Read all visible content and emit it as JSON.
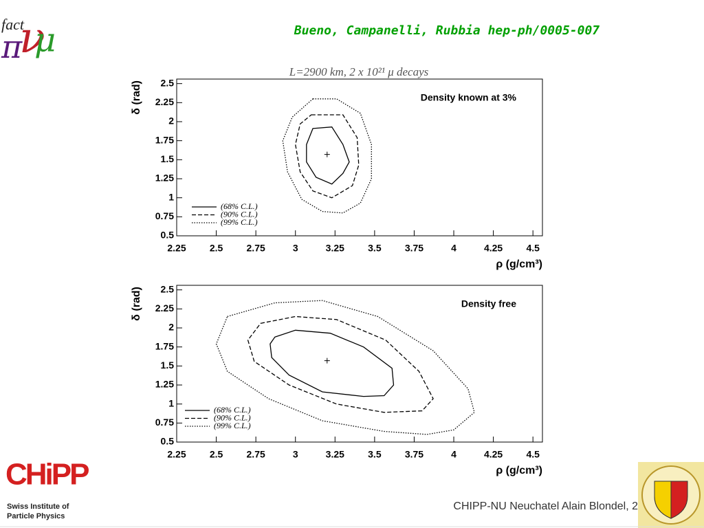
{
  "header": {
    "citation": "Bueno, Campanelli, Rubbia hep-ph/0005-007"
  },
  "logo_nufact": {
    "text": "fact",
    "nu": "ν",
    "pi": "π",
    "mu": "μ"
  },
  "logo_chipp": {
    "mark": "CHiPP",
    "line1": "Swiss Institute of",
    "line2": "Particle Physics"
  },
  "footer": {
    "text": "CHIPP-NU Neuchatel   Alain Blondel, 2"
  },
  "chart_data": [
    {
      "type": "contour",
      "title": "L=2900 km, 2 x 10²¹ μ decays",
      "annotation": "Density known at 3%",
      "x_label": "ρ (g/cm³)",
      "y_label": "δ (rad)",
      "xlim": [
        2.25,
        4.56
      ],
      "ylim": [
        0.5,
        2.56
      ],
      "xticks": [
        2.25,
        2.5,
        2.75,
        3,
        3.25,
        3.5,
        3.75,
        4,
        4.25,
        4.5
      ],
      "yticks": [
        0.5,
        0.75,
        1,
        1.25,
        1.5,
        1.75,
        2,
        2.25,
        2.5
      ],
      "legend": "lower left",
      "best_fit": {
        "x": 3.2,
        "y": 1.57
      },
      "series": [
        {
          "name": "(68% C.L.)",
          "color": "#000000",
          "dash": "solid",
          "x": [
            3.11,
            3.23,
            3.3,
            3.34,
            3.3,
            3.23,
            3.13,
            3.07,
            3.07
          ],
          "y": [
            1.91,
            1.93,
            1.7,
            1.47,
            1.32,
            1.18,
            1.27,
            1.47,
            1.7
          ]
        },
        {
          "name": "(90% C.L.)",
          "color": "#000000",
          "dash": "dashed",
          "x": [
            3.1,
            3.3,
            3.39,
            3.4,
            3.36,
            3.23,
            3.11,
            3.03,
            3.0,
            3.03
          ],
          "y": [
            2.09,
            2.09,
            1.79,
            1.43,
            1.16,
            1.0,
            1.09,
            1.34,
            1.7,
            1.97
          ]
        },
        {
          "name": "(99% C.L.)",
          "color": "#000000",
          "dash": "dotted",
          "x": [
            3.11,
            3.26,
            3.41,
            3.48,
            3.48,
            3.41,
            3.3,
            3.17,
            3.04,
            2.95,
            2.92,
            2.98
          ],
          "y": [
            2.3,
            2.3,
            2.11,
            1.7,
            1.25,
            0.93,
            0.8,
            0.82,
            0.98,
            1.34,
            1.75,
            2.06
          ]
        }
      ]
    },
    {
      "type": "contour",
      "annotation": "Density free",
      "x_label": "ρ (g/cm³)",
      "y_label": "δ (rad)",
      "xlim": [
        2.25,
        4.56
      ],
      "ylim": [
        0.5,
        2.56
      ],
      "xticks": [
        2.25,
        2.5,
        2.75,
        3,
        3.25,
        3.5,
        3.75,
        4,
        4.25,
        4.5
      ],
      "yticks": [
        0.5,
        0.75,
        1,
        1.25,
        1.5,
        1.75,
        2,
        2.25,
        2.5
      ],
      "legend": "lower left",
      "best_fit": {
        "x": 3.2,
        "y": 1.57
      },
      "series": [
        {
          "name": "(68% C.L.)",
          "color": "#000000",
          "dash": "solid",
          "x": [
            2.87,
            3.0,
            3.22,
            3.43,
            3.61,
            3.62,
            3.56,
            3.43,
            3.17,
            2.96,
            2.85,
            2.84
          ],
          "y": [
            1.88,
            1.97,
            1.93,
            1.75,
            1.47,
            1.25,
            1.11,
            1.1,
            1.16,
            1.38,
            1.61,
            1.79
          ]
        },
        {
          "name": "(90% C.L.)",
          "color": "#000000",
          "dash": "dashed",
          "x": [
            2.78,
            3.0,
            3.26,
            3.57,
            3.78,
            3.87,
            3.8,
            3.56,
            3.26,
            2.96,
            2.74,
            2.7
          ],
          "y": [
            2.06,
            2.15,
            2.11,
            1.84,
            1.43,
            1.07,
            0.91,
            0.89,
            1.0,
            1.25,
            1.56,
            1.84
          ]
        },
        {
          "name": "(99% C.L.)",
          "color": "#000000",
          "dash": "dotted",
          "x": [
            2.57,
            2.87,
            3.17,
            3.52,
            3.87,
            4.09,
            4.13,
            4.0,
            3.83,
            3.56,
            3.17,
            2.83,
            2.57,
            2.5
          ],
          "y": [
            2.15,
            2.33,
            2.36,
            2.15,
            1.7,
            1.2,
            0.89,
            0.66,
            0.6,
            0.64,
            0.78,
            1.07,
            1.43,
            1.79
          ]
        }
      ]
    }
  ]
}
